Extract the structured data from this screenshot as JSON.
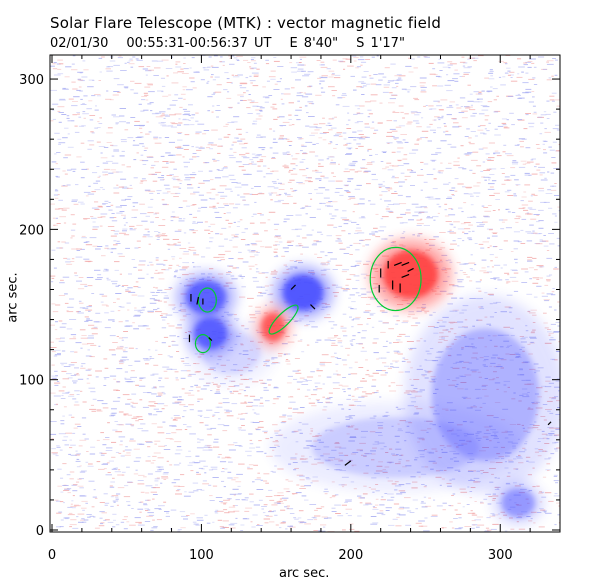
{
  "header": {
    "title": "Solar Flare Telescope (MTK) : vector magnetic field",
    "date": "02/01/30",
    "time_range": "00:55:31-00:56:37 UT",
    "pos_ew": "E 8'40\"",
    "pos_ns": "S 1'17\""
  },
  "axes": {
    "xlabel": "arc sec.",
    "ylabel": "arc sec.",
    "xlim": [
      0,
      340
    ],
    "ylim": [
      0,
      316
    ],
    "x_ticks": [
      0,
      100,
      200,
      300
    ],
    "y_ticks": [
      0,
      100,
      200,
      300
    ]
  },
  "colors": {
    "positive_polarity": "#ff4040",
    "negative_polarity": "#4850ff",
    "contour": "#00cc33",
    "vectors": "#000000",
    "background_noise_red": "#f2a6a6",
    "background_noise_blue": "#a6abf2"
  },
  "features": {
    "positive_regions": [
      {
        "name": "positive-spot-east",
        "x": 240,
        "y": 170,
        "rx": 23,
        "ry": 20,
        "strength": 1.0
      },
      {
        "name": "positive-spot-center",
        "x": 148,
        "y": 135,
        "rx": 10,
        "ry": 12,
        "strength": 0.85
      }
    ],
    "negative_regions": [
      {
        "name": "negative-spot-upper-left",
        "x": 103,
        "y": 155,
        "rx": 17,
        "ry": 14,
        "strength": 0.9
      },
      {
        "name": "negative-spot-lower-left",
        "x": 106,
        "y": 131,
        "rx": 14,
        "ry": 13,
        "strength": 0.9
      },
      {
        "name": "negative-spot-center",
        "x": 168,
        "y": 158,
        "rx": 17,
        "ry": 15,
        "strength": 1.0
      },
      {
        "name": "negative-patch-southeast",
        "x": 290,
        "y": 90,
        "rx": 45,
        "ry": 55,
        "strength": 0.35
      },
      {
        "name": "negative-patch-south",
        "x": 230,
        "y": 55,
        "rx": 70,
        "ry": 25,
        "strength": 0.22
      },
      {
        "name": "negative-patch-far-southeast",
        "x": 312,
        "y": 18,
        "rx": 14,
        "ry": 12,
        "strength": 0.5
      },
      {
        "name": "negative-patch-west",
        "x": 120,
        "y": 118,
        "rx": 25,
        "ry": 18,
        "strength": 0.18
      }
    ],
    "contours": [
      {
        "name": "contour-east",
        "x": 230,
        "y": 167,
        "rx": 17,
        "ry": 21,
        "rot": 0
      },
      {
        "name": "contour-upper-left",
        "x": 104,
        "y": 153,
        "rx": 6,
        "ry": 8,
        "rot": 0
      },
      {
        "name": "contour-lower-left",
        "x": 101,
        "y": 124,
        "rx": 5,
        "ry": 6,
        "rot": 0
      },
      {
        "name": "contour-center",
        "x": 155,
        "y": 140,
        "rx": 4,
        "ry": 13,
        "rot": 45
      }
    ],
    "vectors": [
      {
        "x": 93,
        "y": 152,
        "dx": 0,
        "dy": 5
      },
      {
        "x": 97,
        "y": 150,
        "dx": 1,
        "dy": 5
      },
      {
        "x": 101,
        "y": 150,
        "dx": 0,
        "dy": 4
      },
      {
        "x": 92,
        "y": 125,
        "dx": 0,
        "dy": 5
      },
      {
        "x": 107,
        "y": 126,
        "dx": -2,
        "dy": 2
      },
      {
        "x": 160,
        "y": 160,
        "dx": 3,
        "dy": 3
      },
      {
        "x": 173,
        "y": 150,
        "dx": 3,
        "dy": -3
      },
      {
        "x": 219,
        "y": 158,
        "dx": 0,
        "dy": 5
      },
      {
        "x": 220,
        "y": 168,
        "dx": 0,
        "dy": 6
      },
      {
        "x": 225,
        "y": 174,
        "dx": 0,
        "dy": 5
      },
      {
        "x": 228,
        "y": 160,
        "dx": 0,
        "dy": 6
      },
      {
        "x": 233,
        "y": 158,
        "dx": 0,
        "dy": 6
      },
      {
        "x": 229,
        "y": 176,
        "dx": 5,
        "dy": 2
      },
      {
        "x": 234,
        "y": 176,
        "dx": 5,
        "dy": 2
      },
      {
        "x": 238,
        "y": 172,
        "dx": 4,
        "dy": 2
      },
      {
        "x": 234,
        "y": 168,
        "dx": 5,
        "dy": 2
      },
      {
        "x": 196,
        "y": 43,
        "dx": 4,
        "dy": 3
      },
      {
        "x": 332,
        "y": 70,
        "dx": 2,
        "dy": 2
      }
    ]
  }
}
